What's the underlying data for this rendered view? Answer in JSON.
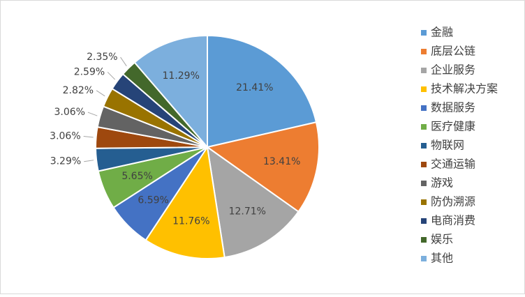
{
  "chart_data": {
    "type": "pie",
    "categories": [
      "金融",
      "底层公链",
      "企业服务",
      "技术解决方案",
      "数据服务",
      "医疗健康",
      "物联网",
      "交通运输",
      "游戏",
      "防伪溯源",
      "电商消费",
      "娱乐",
      "其他"
    ],
    "values": [
      21.41,
      13.41,
      12.71,
      11.76,
      6.59,
      5.65,
      3.29,
      3.06,
      3.06,
      2.82,
      2.59,
      2.35,
      11.29
    ],
    "value_labels": [
      "21.41%",
      "13.41%",
      "12.71%",
      "11.76%",
      "6.59%",
      "5.65%",
      "3.29%",
      "3.06%",
      "3.06%",
      "2.82%",
      "2.59%",
      "2.35%",
      "11.29%"
    ],
    "colors": [
      "#5b9bd5",
      "#ed7d31",
      "#a5a5a5",
      "#ffc000",
      "#4472c4",
      "#70ad47",
      "#255e91",
      "#9e480e",
      "#636363",
      "#997300",
      "#264478",
      "#43682b",
      "#7cafdd"
    ],
    "legend": "right"
  }
}
